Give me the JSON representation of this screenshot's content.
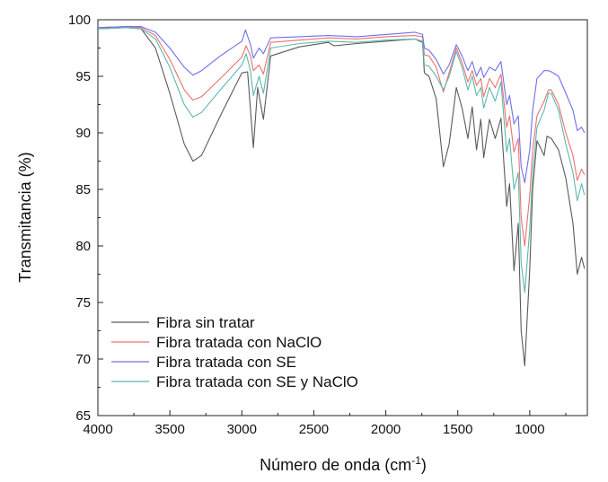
{
  "chart_data": {
    "type": "line",
    "title": "",
    "xlabel": "Número de onda (cm",
    "xlabel_sup": "-1",
    "xlabel_close": ")",
    "ylabel": "Transmitancia (%)",
    "xlim": [
      4000,
      600
    ],
    "ylim": [
      65,
      100
    ],
    "x_reversed": true,
    "grid": false,
    "legend_position": "bottom-left",
    "x_ticks": [
      4000,
      3500,
      3000,
      2500,
      2000,
      1500,
      1000
    ],
    "x_tick_labels": [
      "4000",
      "3500",
      "3000",
      "2500",
      "2000",
      "1500",
      "1000"
    ],
    "y_ticks": [
      65,
      70,
      75,
      80,
      85,
      90,
      95,
      100
    ],
    "y_tick_labels": [
      "65",
      "70",
      "75",
      "80",
      "85",
      "90",
      "95",
      "100"
    ],
    "series": [
      {
        "name": "Fibra sin tratar",
        "color": "#5a5a5a",
        "points": [
          [
            4000,
            99.2
          ],
          [
            3800,
            99.3
          ],
          [
            3700,
            99.2
          ],
          [
            3600,
            97.5
          ],
          [
            3500,
            93.5
          ],
          [
            3400,
            89.0
          ],
          [
            3340,
            87.5
          ],
          [
            3280,
            88.0
          ],
          [
            3150,
            91.5
          ],
          [
            3000,
            95.3
          ],
          [
            2960,
            95.4
          ],
          [
            2920,
            88.7
          ],
          [
            2890,
            94.0
          ],
          [
            2850,
            91.2
          ],
          [
            2800,
            96.8
          ],
          [
            2600,
            97.6
          ],
          [
            2400,
            98.0
          ],
          [
            2360,
            97.7
          ],
          [
            2200,
            97.9
          ],
          [
            2000,
            98.1
          ],
          [
            1800,
            98.3
          ],
          [
            1745,
            98.0
          ],
          [
            1732,
            95.3
          ],
          [
            1700,
            95.0
          ],
          [
            1650,
            93.0
          ],
          [
            1600,
            87.0
          ],
          [
            1560,
            89.0
          ],
          [
            1510,
            94.0
          ],
          [
            1470,
            92.2
          ],
          [
            1430,
            89.5
          ],
          [
            1400,
            92.3
          ],
          [
            1370,
            88.5
          ],
          [
            1340,
            91.2
          ],
          [
            1320,
            87.8
          ],
          [
            1280,
            91.2
          ],
          [
            1240,
            89.5
          ],
          [
            1200,
            91.3
          ],
          [
            1160,
            83.5
          ],
          [
            1140,
            85.5
          ],
          [
            1110,
            77.8
          ],
          [
            1080,
            82.0
          ],
          [
            1060,
            72.5
          ],
          [
            1035,
            69.4
          ],
          [
            1000,
            78.0
          ],
          [
            980,
            85.0
          ],
          [
            950,
            89.3
          ],
          [
            900,
            88.0
          ],
          [
            880,
            89.7
          ],
          [
            850,
            89.5
          ],
          [
            800,
            88.5
          ],
          [
            750,
            86.0
          ],
          [
            700,
            82.0
          ],
          [
            670,
            77.5
          ],
          [
            640,
            79.0
          ],
          [
            620,
            78.0
          ]
        ]
      },
      {
        "name": "Fibra tratada con NaClO",
        "color": "#f07070",
        "points": [
          [
            4000,
            99.3
          ],
          [
            3800,
            99.4
          ],
          [
            3700,
            99.3
          ],
          [
            3600,
            98.6
          ],
          [
            3500,
            96.5
          ],
          [
            3400,
            93.8
          ],
          [
            3340,
            92.9
          ],
          [
            3280,
            93.2
          ],
          [
            3150,
            94.8
          ],
          [
            3000,
            96.7
          ],
          [
            2970,
            97.7
          ],
          [
            2940,
            96.8
          ],
          [
            2920,
            95.5
          ],
          [
            2880,
            96.0
          ],
          [
            2850,
            95.2
          ],
          [
            2800,
            98.0
          ],
          [
            2600,
            98.2
          ],
          [
            2400,
            98.4
          ],
          [
            2200,
            98.3
          ],
          [
            2000,
            98.5
          ],
          [
            1800,
            98.6
          ],
          [
            1745,
            98.5
          ],
          [
            1732,
            96.9
          ],
          [
            1700,
            96.8
          ],
          [
            1650,
            95.8
          ],
          [
            1600,
            93.6
          ],
          [
            1560,
            95.3
          ],
          [
            1510,
            97.5
          ],
          [
            1470,
            96.2
          ],
          [
            1430,
            94.5
          ],
          [
            1400,
            95.5
          ],
          [
            1370,
            94.2
          ],
          [
            1340,
            94.8
          ],
          [
            1320,
            93.2
          ],
          [
            1280,
            94.8
          ],
          [
            1240,
            94.0
          ],
          [
            1200,
            95.2
          ],
          [
            1160,
            90.5
          ],
          [
            1140,
            91.5
          ],
          [
            1110,
            88.3
          ],
          [
            1080,
            89.5
          ],
          [
            1060,
            82.5
          ],
          [
            1035,
            80.0
          ],
          [
            1000,
            84.5
          ],
          [
            980,
            88.5
          ],
          [
            950,
            91.5
          ],
          [
            900,
            92.8
          ],
          [
            870,
            93.8
          ],
          [
            850,
            93.8
          ],
          [
            800,
            92.5
          ],
          [
            750,
            90.0
          ],
          [
            700,
            88.0
          ],
          [
            670,
            85.8
          ],
          [
            640,
            86.8
          ],
          [
            620,
            86.3
          ]
        ]
      },
      {
        "name": "Fibra tratada con SE",
        "color": "#6f6ff0",
        "points": [
          [
            4000,
            99.3
          ],
          [
            3800,
            99.4
          ],
          [
            3700,
            99.4
          ],
          [
            3600,
            98.9
          ],
          [
            3500,
            97.5
          ],
          [
            3400,
            95.8
          ],
          [
            3340,
            95.1
          ],
          [
            3280,
            95.5
          ],
          [
            3150,
            96.8
          ],
          [
            3000,
            98.1
          ],
          [
            2975,
            99.1
          ],
          [
            2940,
            97.8
          ],
          [
            2920,
            96.6
          ],
          [
            2880,
            97.5
          ],
          [
            2850,
            97.0
          ],
          [
            2800,
            98.4
          ],
          [
            2600,
            98.5
          ],
          [
            2400,
            98.6
          ],
          [
            2200,
            98.5
          ],
          [
            2000,
            98.7
          ],
          [
            1800,
            98.9
          ],
          [
            1745,
            98.7
          ],
          [
            1732,
            97.5
          ],
          [
            1700,
            97.3
          ],
          [
            1650,
            96.5
          ],
          [
            1600,
            95.2
          ],
          [
            1560,
            96.0
          ],
          [
            1510,
            97.8
          ],
          [
            1470,
            96.8
          ],
          [
            1430,
            95.5
          ],
          [
            1400,
            96.3
          ],
          [
            1370,
            95.0
          ],
          [
            1340,
            95.8
          ],
          [
            1320,
            94.9
          ],
          [
            1280,
            95.8
          ],
          [
            1240,
            95.5
          ],
          [
            1200,
            96.3
          ],
          [
            1160,
            92.5
          ],
          [
            1140,
            93.3
          ],
          [
            1110,
            90.8
          ],
          [
            1080,
            91.5
          ],
          [
            1060,
            87.0
          ],
          [
            1035,
            85.6
          ],
          [
            1000,
            88.5
          ],
          [
            980,
            92.0
          ],
          [
            950,
            94.8
          ],
          [
            900,
            95.5
          ],
          [
            870,
            95.5
          ],
          [
            850,
            95.4
          ],
          [
            800,
            95.0
          ],
          [
            750,
            93.5
          ],
          [
            700,
            92.0
          ],
          [
            670,
            90.2
          ],
          [
            640,
            90.5
          ],
          [
            620,
            90.0
          ]
        ]
      },
      {
        "name": "Fibra tratada con SE y NaClO",
        "color": "#5cb8ac",
        "points": [
          [
            4000,
            99.2
          ],
          [
            3800,
            99.3
          ],
          [
            3700,
            99.2
          ],
          [
            3600,
            98.3
          ],
          [
            3500,
            95.8
          ],
          [
            3400,
            92.5
          ],
          [
            3340,
            91.4
          ],
          [
            3280,
            91.8
          ],
          [
            3150,
            93.8
          ],
          [
            3000,
            96.0
          ],
          [
            2970,
            97.0
          ],
          [
            2940,
            95.5
          ],
          [
            2920,
            93.3
          ],
          [
            2880,
            95.0
          ],
          [
            2850,
            93.5
          ],
          [
            2800,
            97.5
          ],
          [
            2600,
            97.9
          ],
          [
            2400,
            98.1
          ],
          [
            2200,
            98.0
          ],
          [
            2000,
            98.2
          ],
          [
            1800,
            98.3
          ],
          [
            1745,
            98.1
          ],
          [
            1732,
            96.0
          ],
          [
            1700,
            95.9
          ],
          [
            1650,
            95.0
          ],
          [
            1600,
            93.8
          ],
          [
            1560,
            95.0
          ],
          [
            1510,
            97.2
          ],
          [
            1470,
            95.8
          ],
          [
            1430,
            93.8
          ],
          [
            1400,
            95.0
          ],
          [
            1370,
            93.3
          ],
          [
            1340,
            94.0
          ],
          [
            1320,
            92.2
          ],
          [
            1280,
            94.0
          ],
          [
            1240,
            92.8
          ],
          [
            1200,
            94.5
          ],
          [
            1160,
            88.3
          ],
          [
            1140,
            89.5
          ],
          [
            1110,
            85.0
          ],
          [
            1080,
            86.5
          ],
          [
            1060,
            78.5
          ],
          [
            1035,
            75.9
          ],
          [
            1000,
            81.5
          ],
          [
            980,
            86.5
          ],
          [
            950,
            90.5
          ],
          [
            900,
            92.0
          ],
          [
            870,
            93.5
          ],
          [
            850,
            93.5
          ],
          [
            800,
            92.0
          ],
          [
            750,
            89.0
          ],
          [
            700,
            86.5
          ],
          [
            670,
            84.0
          ],
          [
            640,
            85.5
          ],
          [
            620,
            84.5
          ]
        ]
      }
    ]
  }
}
